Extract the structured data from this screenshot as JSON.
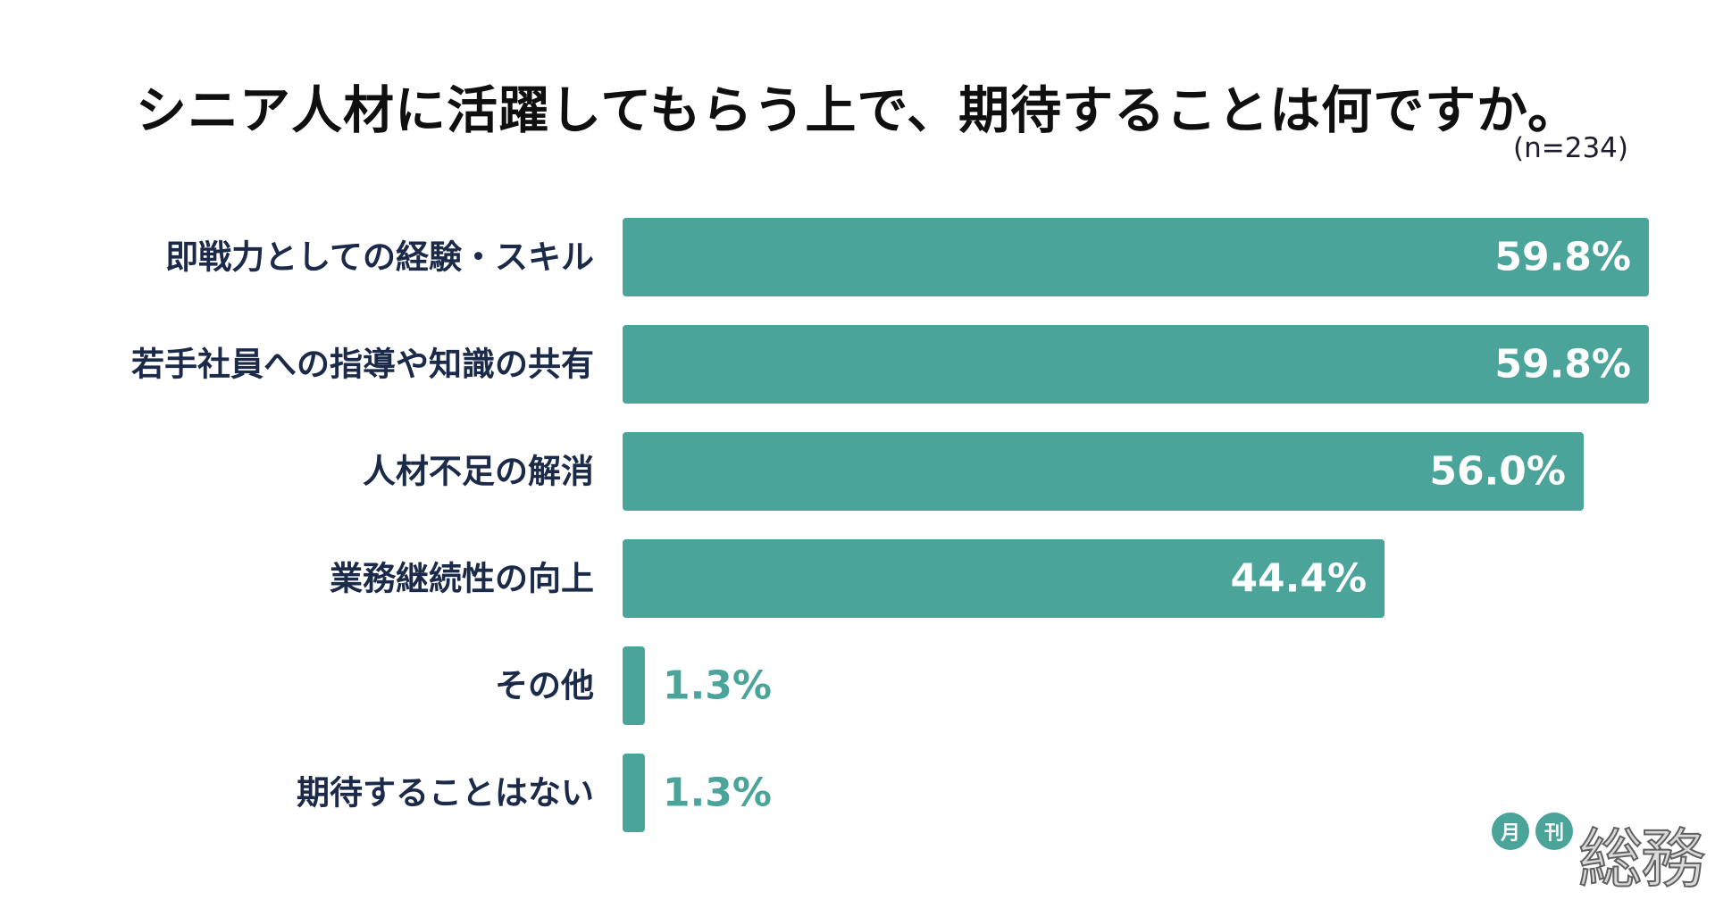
{
  "title": "シニア人材に活躍してもらう上で、期待することは何ですか。",
  "sample_note": "(n=234)",
  "colors": {
    "bar": "#4aa49a",
    "label": "#1c2a4a",
    "inside_value": "#ffffff",
    "outside_value": "#4aa49a"
  },
  "logo": {
    "circle1": "月",
    "circle2": "刊",
    "word": "総務"
  },
  "chart_data": {
    "type": "bar",
    "orientation": "horizontal",
    "title": "シニア人材に活躍してもらう上で、期待することは何ですか。",
    "categories": [
      "即戦力としての経験・スキル",
      "若手社員への指導や知識の共有",
      "人材不足の解消",
      "業務継続性の向上",
      "その他",
      "期待することはない"
    ],
    "values": [
      59.8,
      59.8,
      56.0,
      44.4,
      1.3,
      1.3
    ],
    "value_labels": [
      "59.8%",
      "59.8%",
      "56.0%",
      "44.4%",
      "1.3%",
      "1.3%"
    ],
    "unit": "%",
    "xlim": [
      0,
      59.8
    ],
    "grid": false,
    "legend": "none"
  }
}
